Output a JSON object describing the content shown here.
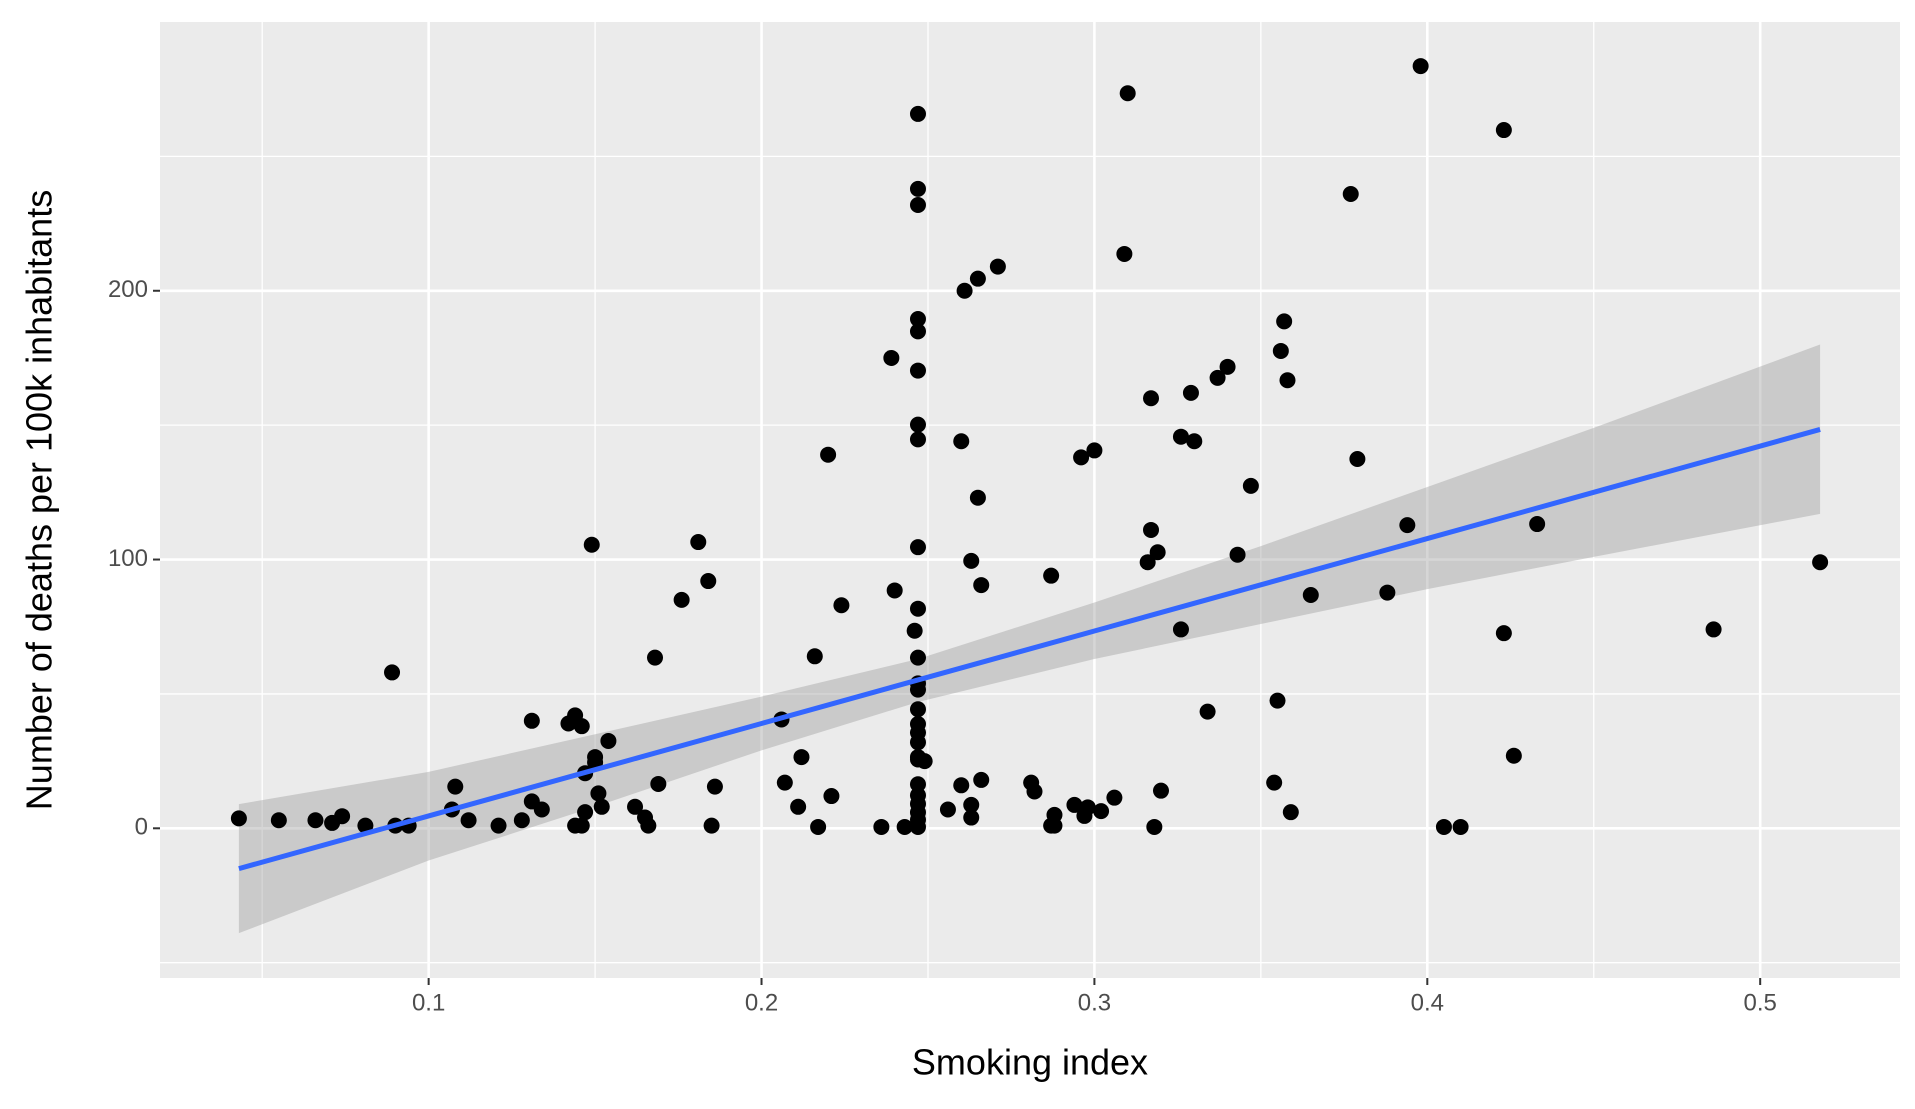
{
  "chart_data": {
    "type": "scatter",
    "x_label": "Smoking index",
    "y_label": "Number of deaths per 100k inhabitants",
    "xlim": [
      0.0193,
      0.542
    ],
    "ylim": [
      -55.7,
      300
    ],
    "xticks": [
      0.1,
      0.2,
      0.3,
      0.4,
      0.5
    ],
    "yticks": [
      0,
      100,
      200
    ],
    "grid": true,
    "point_color": "#000000",
    "x": [
      0.043,
      0.055,
      0.066,
      0.071,
      0.074,
      0.081,
      0.089,
      0.09,
      0.094,
      0.107,
      0.108,
      0.112,
      0.121,
      0.128,
      0.131,
      0.131,
      0.134,
      0.142,
      0.144,
      0.144,
      0.146,
      0.146,
      0.147,
      0.147,
      0.149,
      0.15,
      0.15,
      0.151,
      0.152,
      0.154,
      0.162,
      0.165,
      0.166,
      0.168,
      0.169,
      0.176,
      0.181,
      0.184,
      0.185,
      0.186,
      0.206,
      0.207,
      0.211,
      0.212,
      0.216,
      0.217,
      0.22,
      0.221,
      0.224,
      0.236,
      0.239,
      0.24,
      0.243,
      0.246,
      0.247,
      0.247,
      0.247,
      0.247,
      0.247,
      0.247,
      0.247,
      0.247,
      0.247,
      0.247,
      0.247,
      0.247,
      0.247,
      0.247,
      0.247,
      0.247,
      0.247,
      0.247,
      0.247,
      0.247,
      0.247,
      0.247,
      0.247,
      0.247,
      0.247,
      0.249,
      0.256,
      0.26,
      0.26,
      0.261,
      0.263,
      0.263,
      0.263,
      0.265,
      0.265,
      0.266,
      0.266,
      0.271,
      0.281,
      0.282,
      0.287,
      0.287,
      0.288,
      0.288,
      0.294,
      0.296,
      0.297,
      0.298,
      0.3,
      0.302,
      0.306,
      0.309,
      0.31,
      0.316,
      0.317,
      0.317,
      0.318,
      0.319,
      0.32,
      0.326,
      0.326,
      0.329,
      0.33,
      0.334,
      0.337,
      0.34,
      0.343,
      0.347,
      0.354,
      0.355,
      0.356,
      0.357,
      0.358,
      0.359,
      0.365,
      0.377,
      0.379,
      0.388,
      0.394,
      0.398,
      0.405,
      0.41,
      0.423,
      0.423,
      0.426,
      0.433,
      0.486,
      0.518
    ],
    "y": [
      3.7,
      3,
      3,
      2,
      4.5,
      1,
      58,
      1,
      1,
      7,
      15.5,
      3,
      1,
      3,
      10,
      40,
      7,
      39,
      42,
      1,
      38,
      1,
      20.5,
      6,
      105.5,
      26.5,
      24.5,
      13,
      8,
      32.5,
      8,
      4,
      1,
      63.5,
      16.5,
      85,
      106.5,
      92,
      1,
      15.5,
      40.5,
      17,
      8,
      26.5,
      64,
      0.5,
      139,
      12,
      83,
      0.5,
      175,
      88.5,
      0.5,
      73.5,
      265.8,
      237.9,
      231.9,
      189.5,
      184.9,
      170.3,
      150.2,
      144.7,
      104.6,
      81.7,
      63.5,
      53.9,
      51.6,
      44.3,
      38.8,
      35.6,
      32,
      26.5,
      25.6,
      16.4,
      12.3,
      9.1,
      5.9,
      3.2,
      0.5,
      25,
      7,
      144,
      16,
      200,
      99.5,
      8.7,
      4,
      123,
      204.5,
      18,
      90.5,
      209,
      17,
      13.7,
      1,
      94,
      5,
      1,
      8.7,
      138,
      4.6,
      7.8,
      140.6,
      6.4,
      11.4,
      213.7,
      273.5,
      99,
      111,
      160,
      0.5,
      102.7,
      14,
      74,
      145.7,
      162,
      144,
      43.4,
      167.6,
      171.7,
      101.8,
      127.4,
      17,
      47.5,
      177.6,
      188.6,
      166.7,
      6,
      86.8,
      236,
      137.4,
      87.7,
      112.8,
      283.6,
      0.5,
      0.5,
      259.8,
      72.6,
      27,
      113.2,
      74,
      99
    ],
    "fit": {
      "color": "#3366ff",
      "band_color": "#999999",
      "x": [
        0.043,
        0.1,
        0.15,
        0.2,
        0.247,
        0.3,
        0.35,
        0.4,
        0.45,
        0.518
      ],
      "y": [
        -15,
        4.6,
        21.8,
        39,
        55.2,
        73.4,
        90.6,
        107.8,
        125,
        148.4
      ],
      "lower": [
        -39,
        -12,
        8,
        29,
        47,
        63,
        76,
        89,
        101,
        117
      ],
      "upper": [
        9,
        21,
        35,
        49,
        63,
        84,
        105,
        127,
        149,
        180
      ]
    }
  }
}
